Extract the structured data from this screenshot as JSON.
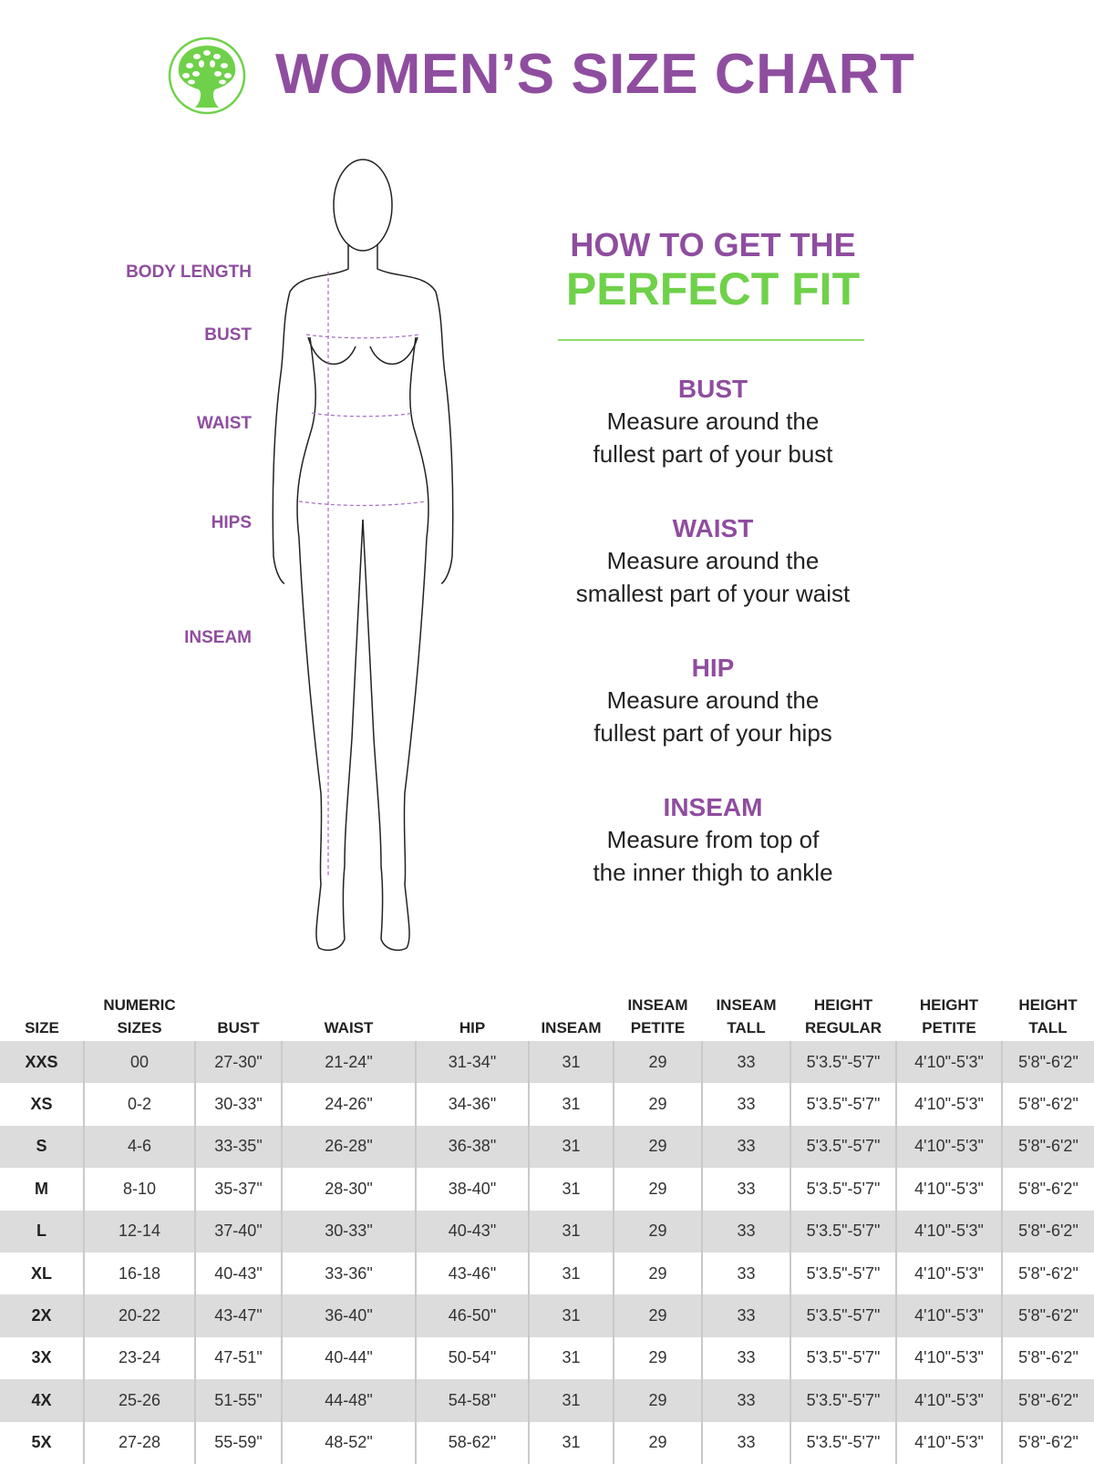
{
  "header": {
    "title": "WOMEN’S SIZE CHART",
    "logo_icon": "tree-in-circle-icon",
    "brand_color": "#6fd14a",
    "title_color": "#8f4d9f"
  },
  "figure_labels": [
    "BODY LENGTH",
    "BUST",
    "WAIST",
    "HIPS",
    "INSEAM"
  ],
  "fit": {
    "heading1": "HOW TO GET THE",
    "heading2": "PERFECT FIT",
    "sections": [
      {
        "title": "BUST",
        "line1": "Measure around the",
        "line2": "fullest part of your bust"
      },
      {
        "title": "WAIST",
        "line1": "Measure around the",
        "line2": "smallest part of your waist"
      },
      {
        "title": "HIP",
        "line1": "Measure around the",
        "line2": "fullest part of your hips"
      },
      {
        "title": "INSEAM",
        "line1": "Measure from top of",
        "line2": "the inner thigh to ankle"
      }
    ]
  },
  "table": {
    "headers": [
      [
        "SIZE",
        ""
      ],
      [
        "NUMERIC",
        "SIZES"
      ],
      [
        "BUST",
        ""
      ],
      [
        "WAIST",
        ""
      ],
      [
        "HIP",
        ""
      ],
      [
        "INSEAM",
        ""
      ],
      [
        "INSEAM",
        "PETITE"
      ],
      [
        "INSEAM",
        "TALL"
      ],
      [
        "HEIGHT",
        "REGULAR"
      ],
      [
        "HEIGHT",
        "PETITE"
      ],
      [
        "HEIGHT",
        "TALL"
      ]
    ],
    "rows": [
      [
        "XXS",
        "00",
        "27-30\"",
        "21-24\"",
        "31-34\"",
        "31",
        "29",
        "33",
        "5'3.5\"-5'7\"",
        "4'10\"-5'3\"",
        "5'8\"-6'2\""
      ],
      [
        "XS",
        "0-2",
        "30-33\"",
        "24-26\"",
        "34-36\"",
        "31",
        "29",
        "33",
        "5'3.5\"-5'7\"",
        "4'10\"-5'3\"",
        "5'8\"-6'2\""
      ],
      [
        "S",
        "4-6",
        "33-35\"",
        "26-28\"",
        "36-38\"",
        "31",
        "29",
        "33",
        "5'3.5\"-5'7\"",
        "4'10\"-5'3\"",
        "5'8\"-6'2\""
      ],
      [
        "M",
        "8-10",
        "35-37\"",
        "28-30\"",
        "38-40\"",
        "31",
        "29",
        "33",
        "5'3.5\"-5'7\"",
        "4'10\"-5'3\"",
        "5'8\"-6'2\""
      ],
      [
        "L",
        "12-14",
        "37-40\"",
        "30-33\"",
        "40-43\"",
        "31",
        "29",
        "33",
        "5'3.5\"-5'7\"",
        "4'10\"-5'3\"",
        "5'8\"-6'2\""
      ],
      [
        "XL",
        "16-18",
        "40-43\"",
        "33-36\"",
        "43-46\"",
        "31",
        "29",
        "33",
        "5'3.5\"-5'7\"",
        "4'10\"-5'3\"",
        "5'8\"-6'2\""
      ],
      [
        "2X",
        "20-22",
        "43-47\"",
        "36-40\"",
        "46-50\"",
        "31",
        "29",
        "33",
        "5'3.5\"-5'7\"",
        "4'10\"-5'3\"",
        "5'8\"-6'2\""
      ],
      [
        "3X",
        "23-24",
        "47-51\"",
        "40-44\"",
        "50-54\"",
        "31",
        "29",
        "33",
        "5'3.5\"-5'7\"",
        "4'10\"-5'3\"",
        "5'8\"-6'2\""
      ],
      [
        "4X",
        "25-26",
        "51-55\"",
        "44-48\"",
        "54-58\"",
        "31",
        "29",
        "33",
        "5'3.5\"-5'7\"",
        "4'10\"-5'3\"",
        "5'8\"-6'2\""
      ],
      [
        "5X",
        "27-28",
        "55-59\"",
        "48-52\"",
        "58-62\"",
        "31",
        "29",
        "33",
        "5'3.5\"-5'7\"",
        "4'10\"-5'3\"",
        "5'8\"-6'2\""
      ]
    ]
  }
}
